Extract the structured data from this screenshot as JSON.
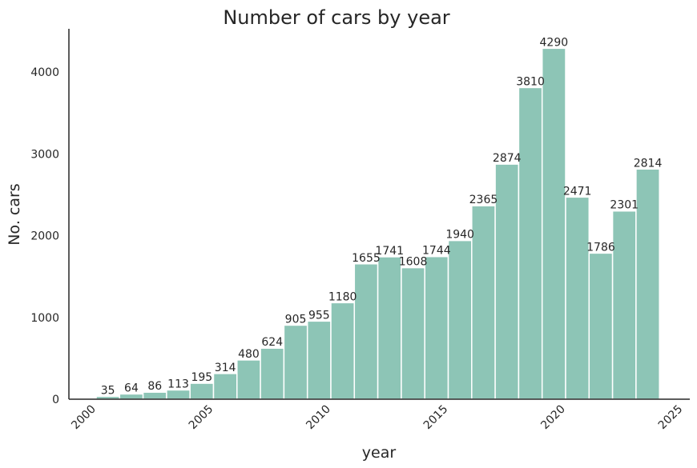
{
  "chart_data": {
    "type": "bar",
    "title": "Number of cars by year",
    "xlabel": "year",
    "ylabel": "No. cars",
    "categories": [
      2000,
      2001,
      2002,
      2003,
      2004,
      2005,
      2006,
      2007,
      2008,
      2009,
      2010,
      2011,
      2012,
      2013,
      2014,
      2015,
      2016,
      2017,
      2018,
      2019,
      2020,
      2021,
      2022,
      2023
    ],
    "values": [
      35,
      64,
      86,
      113,
      195,
      314,
      480,
      624,
      905,
      955,
      1180,
      1655,
      1741,
      1608,
      1744,
      1940,
      2365,
      2874,
      3810,
      4290,
      2471,
      1786,
      2301,
      2814
    ],
    "xlim": [
      2000,
      2025
    ],
    "ylim": [
      0,
      4500
    ],
    "xticks": [
      "2000",
      "2005",
      "2010",
      "2015",
      "2020",
      "2025"
    ],
    "yticks": [
      "0",
      "1000",
      "2000",
      "3000",
      "4000"
    ],
    "bar_color": "#8dc5b6",
    "grid": false
  }
}
